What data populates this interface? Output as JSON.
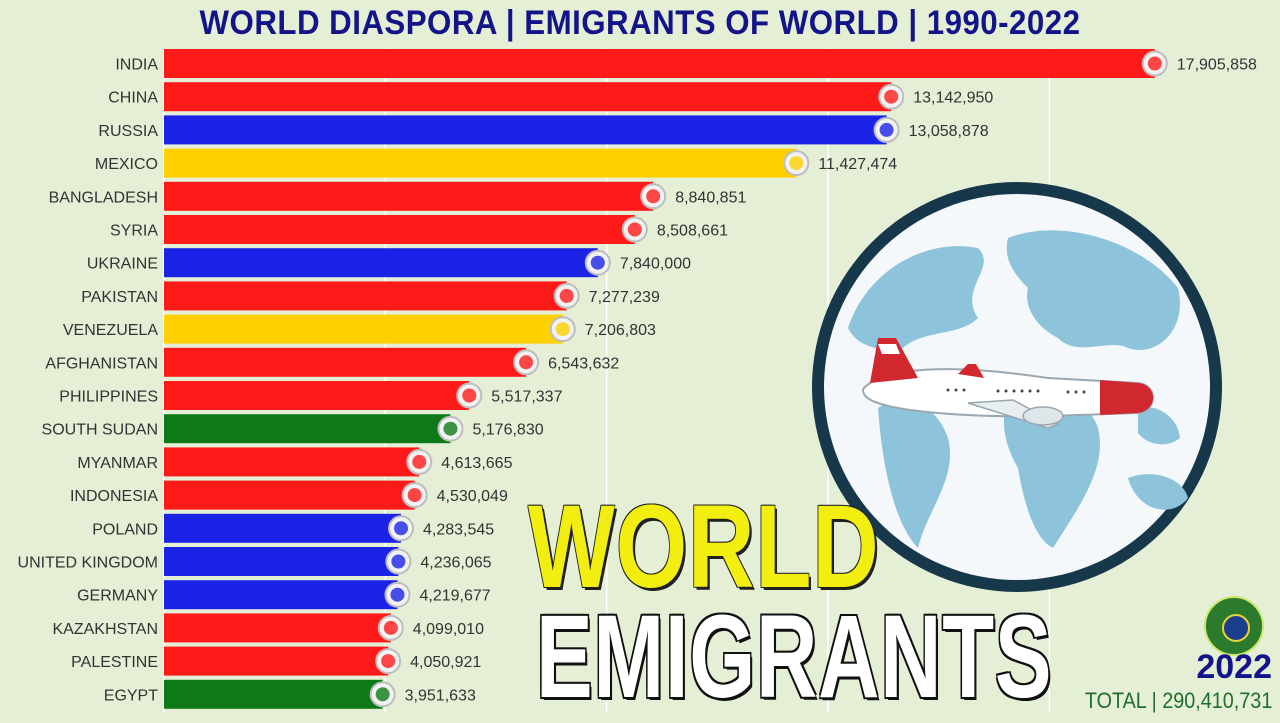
{
  "title": "WORLD DIASPORA | EMIGRANTS OF WORLD | 1990-2022",
  "overlay": {
    "line1": "WORLD",
    "line2": "EMIGRANTS"
  },
  "year": "2022",
  "total": "TOTAL | 290,410,731",
  "colors": {
    "red": "#ff1a1a",
    "blue": "#1b24e6",
    "yellow": "#ffd000",
    "green": "#0d7a17",
    "title": "#14148a",
    "background": "#e4efd6"
  },
  "chart_data": {
    "type": "bar",
    "orientation": "horizontal",
    "title": "WORLD DIASPORA | EMIGRANTS OF WORLD | 1990-2022",
    "xlim": [
      0,
      18000000
    ],
    "grid": true,
    "categories": [
      "INDIA",
      "CHINA",
      "RUSSIA",
      "MEXICO",
      "BANGLADESH",
      "SYRIA",
      "UKRAINE",
      "PAKISTAN",
      "VENEZUELA",
      "AFGHANISTAN",
      "PHILIPPINES",
      "SOUTH SUDAN",
      "MYANMAR",
      "INDONESIA",
      "POLAND",
      "UNITED KINGDOM",
      "GERMANY",
      "KAZAKHSTAN",
      "PALESTINE",
      "EGYPT"
    ],
    "values": [
      17905858,
      13142950,
      13058878,
      11427474,
      8840851,
      8508661,
      7840000,
      7277239,
      7206803,
      6543632,
      5517337,
      5176830,
      4613665,
      4530049,
      4283545,
      4236065,
      4219677,
      4099010,
      4050921,
      3951633
    ],
    "value_labels": [
      "17,905,858",
      "13,142,950",
      "13,058,878",
      "11,427,474",
      "8,840,851",
      "8,508,661",
      "7,840,000",
      "7,277,239",
      "7,206,803",
      "6,543,632",
      "5,517,337",
      "5,176,830",
      "4,613,665",
      "4,530,049",
      "4,283,545",
      "4,236,065",
      "4,219,677",
      "4,099,010",
      "4,050,921",
      "3,951,633"
    ],
    "bar_colors": [
      "red",
      "red",
      "blue",
      "yellow",
      "red",
      "red",
      "blue",
      "red",
      "yellow",
      "red",
      "red",
      "green",
      "red",
      "red",
      "blue",
      "blue",
      "blue",
      "red",
      "red",
      "green"
    ],
    "flag_icons": [
      "india-flag-icon",
      "china-flag-icon",
      "russia-flag-icon",
      "mexico-flag-icon",
      "bangladesh-flag-icon",
      "syria-flag-icon",
      "ukraine-flag-icon",
      "pakistan-flag-icon",
      "venezuela-flag-icon",
      "afghanistan-flag-icon",
      "philippines-flag-icon",
      "south-sudan-flag-icon",
      "myanmar-flag-icon",
      "indonesia-flag-icon",
      "poland-flag-icon",
      "united-kingdom-flag-icon",
      "germany-flag-icon",
      "kazakhstan-flag-icon",
      "palestine-flag-icon",
      "egypt-flag-icon"
    ]
  }
}
